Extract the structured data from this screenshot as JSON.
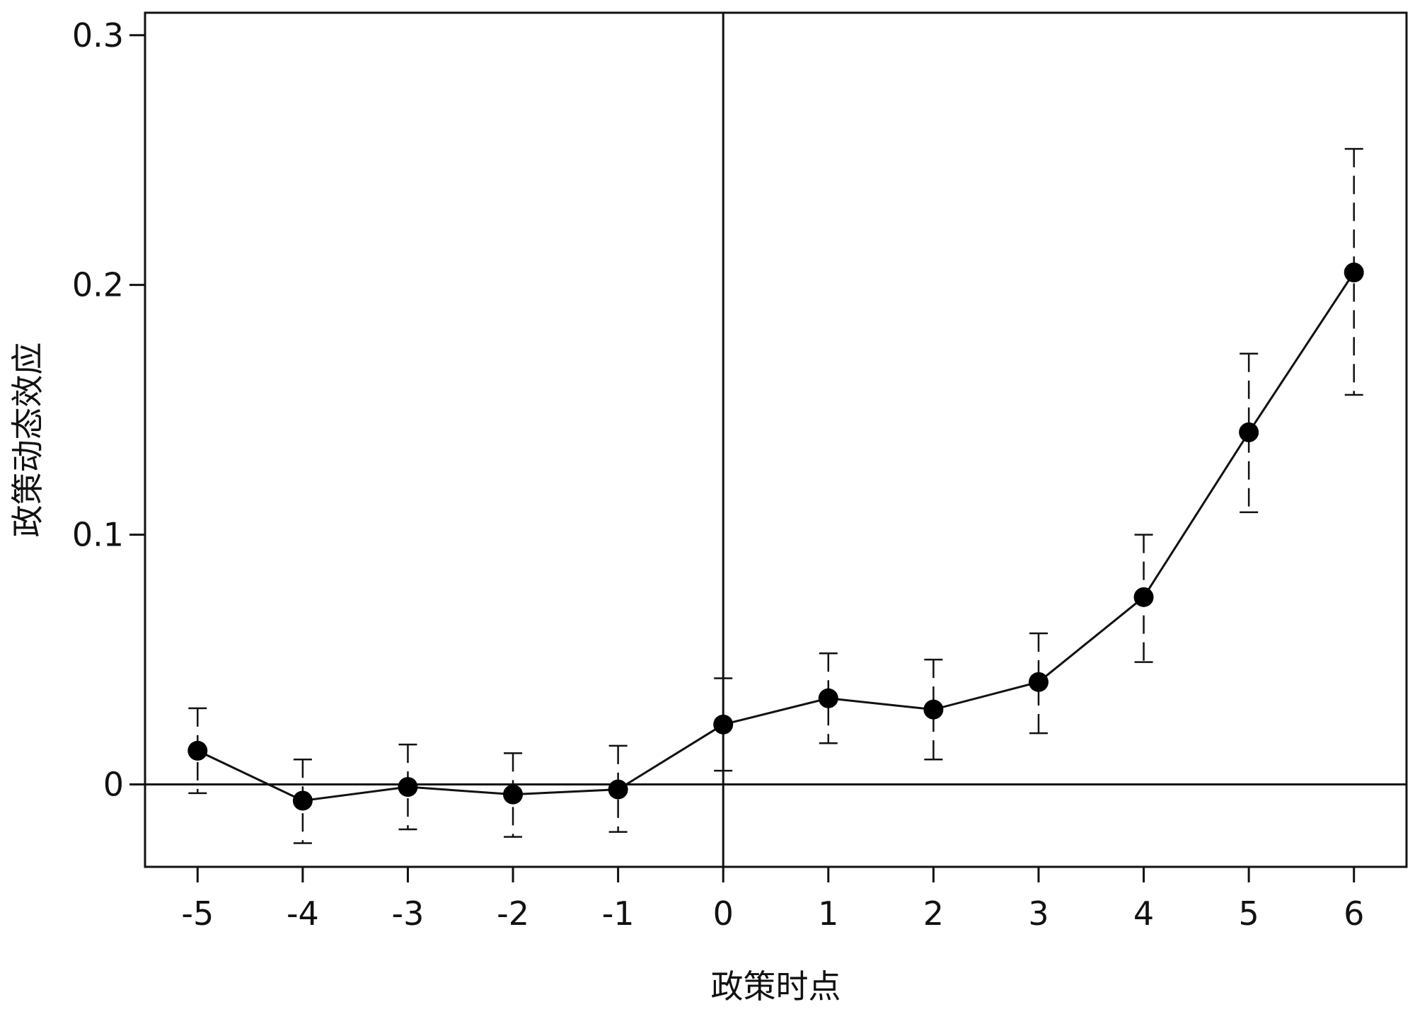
{
  "chart_data": {
    "type": "scatter",
    "title": "",
    "xlabel": "政策时点",
    "ylabel": "政策动态效应",
    "xlim": [
      -5.5,
      6.5
    ],
    "ylim": [
      -0.033,
      0.309
    ],
    "x_ticks": [
      -5,
      -4,
      -3,
      -2,
      -1,
      0,
      1,
      2,
      3,
      4,
      5,
      6
    ],
    "x_tick_labels": [
      "-5",
      "-4",
      "-3",
      "-2",
      "-1",
      "0",
      "1",
      "2",
      "3",
      "4",
      "5",
      "6"
    ],
    "y_ticks": [
      0,
      0.1,
      0.2,
      0.3
    ],
    "y_tick_labels": [
      "0",
      "0.1",
      "0.2",
      "0.3"
    ],
    "reference_lines": {
      "x": 0,
      "y": 0
    },
    "grid": false,
    "legend": "none",
    "series": [
      {
        "x": [
          -5,
          -4,
          -3,
          -2,
          -1,
          0,
          1,
          2,
          3,
          4,
          5,
          6
        ],
        "y": [
          0.0135,
          -0.0065,
          -0.001,
          -0.004,
          -0.002,
          0.024,
          0.0345,
          0.03,
          0.041,
          0.075,
          0.141,
          0.205
        ],
        "ci_lower": [
          -0.0035,
          -0.0235,
          -0.018,
          -0.021,
          -0.019,
          0.0055,
          0.0165,
          0.01,
          0.0205,
          0.049,
          0.109,
          0.156
        ],
        "ci_upper": [
          0.0305,
          0.01,
          0.016,
          0.0125,
          0.0155,
          0.0425,
          0.0525,
          0.05,
          0.0605,
          0.1,
          0.1725,
          0.2545
        ],
        "connected": true,
        "marker": "filled-circle",
        "error_bar_style": "dashed"
      }
    ],
    "colors": {
      "line": "#111111",
      "marker": "#000000",
      "axis": "#111111"
    }
  }
}
